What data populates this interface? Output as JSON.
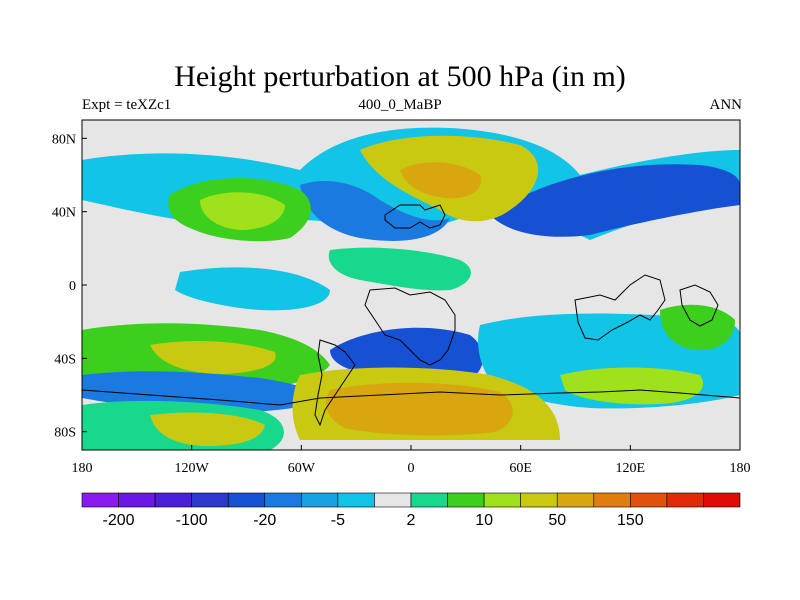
{
  "chart_data": {
    "type": "heatmap",
    "title": "Height perturbation at 500 hPa (in m)",
    "left_label": "Expt = teXZc1",
    "center_label": "400_0_MaBP",
    "right_label": "ANN",
    "x_ticks": [
      "180",
      "120W",
      "60W",
      "0",
      "60E",
      "120E",
      "180"
    ],
    "y_ticks": [
      "80N",
      "40N",
      "0",
      "40S",
      "80S"
    ],
    "x_range": [
      -180,
      180
    ],
    "y_range": [
      -90,
      90
    ],
    "colorbar": {
      "labels": [
        "-200",
        "-100",
        "-20",
        "-5",
        "2",
        "10",
        "50",
        "150"
      ],
      "colors": [
        "#8a1bf0",
        "#6a18e6",
        "#4a1fd8",
        "#2d38cc",
        "#1651d4",
        "#1a7ae0",
        "#17a2e3",
        "#12c4e6",
        "#e6e6e6",
        "#17d88c",
        "#3ccf1e",
        "#9fe11a",
        "#c9c912",
        "#d8a70f",
        "#e07d0d",
        "#e0520b",
        "#e02a0a",
        "#e00a08"
      ]
    },
    "colors": {
      "background": "#e6e6e6",
      "light_blue": "#12c4e6",
      "mid_blue": "#1a7ae0",
      "dark_blue": "#1651d4",
      "teal": "#17d88c",
      "green": "#3ccf1e",
      "yellow_green": "#9fe11a",
      "olive": "#c9c912",
      "orange": "#d8a70f",
      "dark_orange": "#e07d0d"
    }
  }
}
